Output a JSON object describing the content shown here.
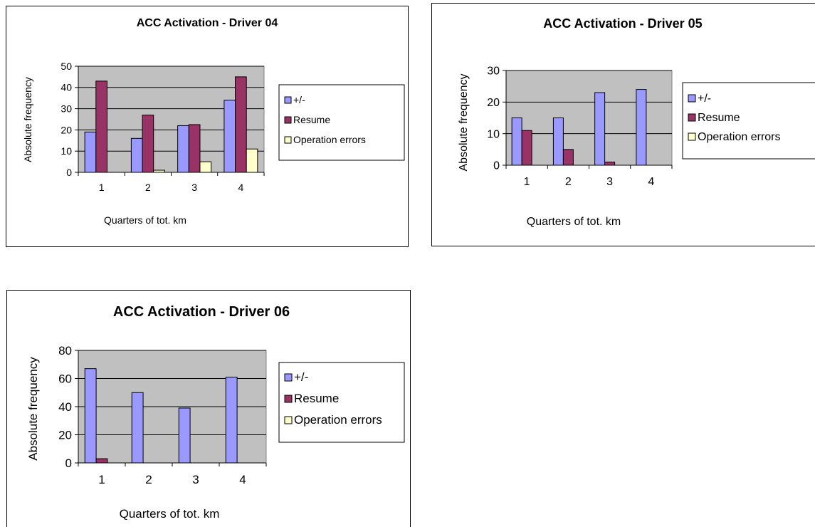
{
  "chart_data": [
    {
      "type": "bar",
      "title": "ACC Activation - Driver 04",
      "xlabel": "Quarters of tot. km",
      "ylabel": "Absolute frequency",
      "categories": [
        "1",
        "2",
        "3",
        "4"
      ],
      "ylim": [
        0,
        50
      ],
      "yticks": [
        "0",
        "10",
        "20",
        "30",
        "40",
        "50"
      ],
      "grid": true,
      "legend_position": "right",
      "series": [
        {
          "name": "+/-",
          "color": "#9999ff",
          "values": [
            19,
            16,
            22,
            34
          ]
        },
        {
          "name": "Resume",
          "color": "#993366",
          "values": [
            43,
            27,
            22.5,
            45
          ]
        },
        {
          "name": "Operation errors",
          "color": "#ffffcc",
          "values": [
            0,
            1,
            5,
            11
          ]
        }
      ]
    },
    {
      "type": "bar",
      "title": "ACC Activation - Driver 05",
      "xlabel": "Quarters of tot. km",
      "ylabel": "Absolute frequency",
      "categories": [
        "1",
        "2",
        "3",
        "4"
      ],
      "ylim": [
        0,
        30
      ],
      "yticks": [
        "0",
        "10",
        "20",
        "30"
      ],
      "grid": true,
      "legend_position": "right",
      "series": [
        {
          "name": "+/-",
          "color": "#9999ff",
          "values": [
            15,
            15,
            23,
            24
          ]
        },
        {
          "name": "Resume",
          "color": "#993366",
          "values": [
            11,
            5,
            1,
            0
          ]
        },
        {
          "name": "Operation errors",
          "color": "#ffffcc",
          "values": [
            0,
            0,
            0,
            0
          ]
        }
      ]
    },
    {
      "type": "bar",
      "title": "ACC Activation - Driver 06",
      "xlabel": "Quarters of tot. km",
      "ylabel": "Absolute frequency",
      "categories": [
        "1",
        "2",
        "3",
        "4"
      ],
      "ylim": [
        0,
        80
      ],
      "yticks": [
        "0",
        "20",
        "40",
        "60",
        "80"
      ],
      "grid": true,
      "legend_position": "right",
      "series": [
        {
          "name": "+/-",
          "color": "#9999ff",
          "values": [
            67,
            50,
            39,
            61
          ]
        },
        {
          "name": "Resume",
          "color": "#993366",
          "values": [
            3,
            0,
            0,
            0
          ]
        },
        {
          "name": "Operation errors",
          "color": "#ffffcc",
          "values": [
            0,
            0,
            0,
            0
          ]
        }
      ]
    }
  ]
}
